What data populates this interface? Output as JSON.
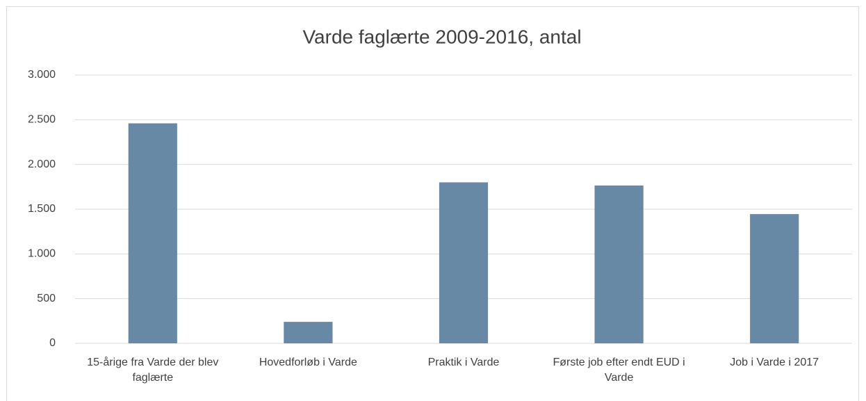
{
  "chart_data": {
    "type": "bar",
    "title": "Varde faglærte 2009-2016, antal",
    "categories": [
      "15-årige fra Varde der blev faglærte",
      "Hovedforløb i Varde",
      "Praktik i Varde",
      "Første job efter endt EUD i Varde",
      "Job i Varde i 2017"
    ],
    "values": [
      2460,
      240,
      1800,
      1765,
      1445
    ],
    "color": "#6789a5",
    "ylim": [
      0,
      3000
    ],
    "yticks": [
      0,
      500,
      {
        "value": 1000,
        "label": "1.000"
      },
      {
        "value": 1500,
        "label": "1.500"
      },
      {
        "value": 2000,
        "label": "2.000"
      },
      {
        "value": 2500,
        "label": "2.500"
      },
      {
        "value": 3000,
        "label": "3.000"
      }
    ],
    "grid": true
  }
}
